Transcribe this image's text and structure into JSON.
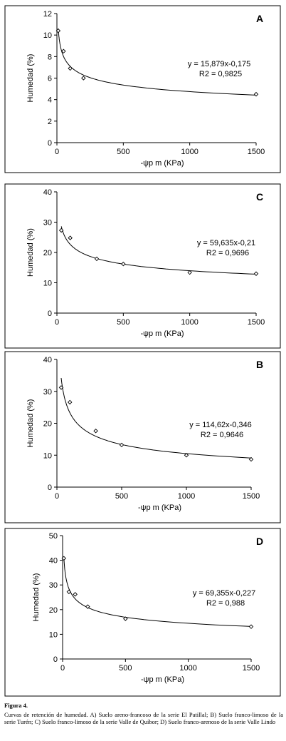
{
  "chart_data": [
    {
      "type": "scatter",
      "panel_label": "A",
      "xlabel": "-ψp m (KPa)",
      "ylabel": "Humedad (%)",
      "xlim": [
        0,
        1500
      ],
      "ylim": [
        0,
        12
      ],
      "xticks": [
        0,
        500,
        1000,
        1500
      ],
      "yticks": [
        0,
        2,
        4,
        6,
        8,
        10,
        12
      ],
      "points": [
        {
          "x": 10,
          "y": 10.4
        },
        {
          "x": 50,
          "y": 8.5
        },
        {
          "x": 100,
          "y": 6.9
        },
        {
          "x": 200,
          "y": 6.0
        },
        {
          "x": 1500,
          "y": 4.5
        }
      ],
      "fit": {
        "coef": 15.879,
        "exp": -0.175
      },
      "equation": "y = 15,879x-0,175",
      "r2": "R2 = 0,9825"
    },
    {
      "type": "scatter",
      "panel_label": "C",
      "xlabel": "-ψp m (KPa)",
      "ylabel": "Humedad (%)",
      "xlim": [
        0,
        1500
      ],
      "ylim": [
        0,
        40
      ],
      "xticks": [
        0,
        500,
        1000,
        1500
      ],
      "yticks": [
        0,
        10,
        20,
        30,
        40
      ],
      "points": [
        {
          "x": 33,
          "y": 27.3
        },
        {
          "x": 100,
          "y": 24.8
        },
        {
          "x": 300,
          "y": 17.9
        },
        {
          "x": 500,
          "y": 16.2
        },
        {
          "x": 1000,
          "y": 13.4
        },
        {
          "x": 1500,
          "y": 13.0
        }
      ],
      "fit": {
        "coef": 59.635,
        "exp": -0.21
      },
      "equation": "y = 59,635x-0,21",
      "r2": "R2 = 0,9696"
    },
    {
      "type": "scatter",
      "panel_label": "B",
      "xlabel": "-ψp m (KPa)",
      "ylabel": "Humedad (%)",
      "xlim": [
        0,
        1500
      ],
      "ylim": [
        0,
        40
      ],
      "xticks": [
        0,
        500,
        1000,
        1500
      ],
      "yticks": [
        0,
        10,
        20,
        30,
        40
      ],
      "points": [
        {
          "x": 33,
          "y": 31.2
        },
        {
          "x": 100,
          "y": 26.6
        },
        {
          "x": 300,
          "y": 17.6
        },
        {
          "x": 500,
          "y": 13.2
        },
        {
          "x": 1000,
          "y": 10.0
        },
        {
          "x": 1500,
          "y": 8.7
        }
      ],
      "fit": {
        "coef": 114.62,
        "exp": -0.346
      },
      "equation": "y = 114,62x-0,346",
      "r2": "R2 = 0,9646"
    },
    {
      "type": "scatter",
      "panel_label": "D",
      "xlabel": "-ψp m (KPa)",
      "ylabel": "Humedad (%)",
      "xlim": [
        0,
        1500
      ],
      "ylim": [
        0,
        50
      ],
      "xticks": [
        0,
        500,
        1000,
        1500
      ],
      "yticks": [
        0,
        10,
        20,
        30,
        40,
        50
      ],
      "points": [
        {
          "x": 10,
          "y": 40.8
        },
        {
          "x": 50,
          "y": 27.2
        },
        {
          "x": 100,
          "y": 26.2
        },
        {
          "x": 200,
          "y": 21.2
        },
        {
          "x": 500,
          "y": 16.3
        },
        {
          "x": 1500,
          "y": 13.1
        }
      ],
      "fit": {
        "coef": 69.355,
        "exp": -0.227
      },
      "equation": "y = 69,355x-0,227",
      "r2": "R2 = 0,988"
    }
  ],
  "caption": {
    "title": "Figura 4.",
    "text": "Curvas de retención de humedad. A) Suelo areno-francoso de la serie El Patillal; B) Suelo franco-limoso de la serie Turén; C) Suelo franco-limoso de la serie Valle de Quíbor; D) Suelo franco-arenoso de la serie Valle Lindo"
  }
}
